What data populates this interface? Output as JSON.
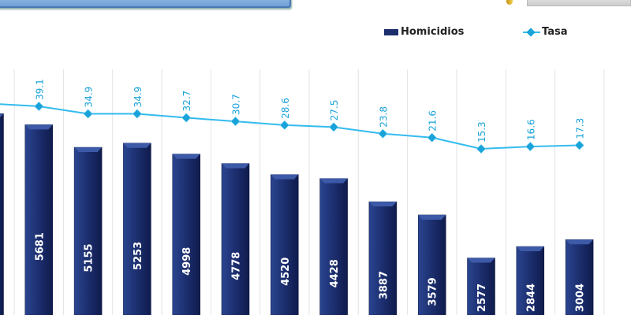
{
  "chart_data": {
    "type": "bar",
    "title": "",
    "categories": [
      "",
      "",
      "",
      "",
      "",
      "",
      "",
      "",
      "",
      "",
      "",
      "",
      ""
    ],
    "series": [
      {
        "name": "Homicidios",
        "type": "bar",
        "color": "#1c2e6e",
        "values": [
          5940,
          5681,
          5155,
          5253,
          4998,
          4778,
          4520,
          4428,
          3887,
          3579,
          2577,
          2844,
          3004
        ],
        "labels": [
          "",
          "5681",
          "5155",
          "5253",
          "4998",
          "4778",
          "4520",
          "4428",
          "3887",
          "3579",
          "2577",
          "2844",
          "3004"
        ]
      },
      {
        "name": "Tasa",
        "type": "line",
        "color": "#33bbee",
        "values": [
          40.6,
          39.1,
          34.9,
          34.9,
          32.7,
          30.7,
          28.6,
          27.5,
          23.8,
          21.6,
          15.3,
          16.6,
          17.3
        ],
        "labels": [
          "",
          "39.1",
          "34.9",
          "34.9",
          "32.7",
          "30.7",
          "28.6",
          "27.5",
          "23.8",
          "21.6",
          "15.3",
          "16.6",
          "17.3"
        ]
      }
    ],
    "legend": "top-right",
    "grid": "vertical"
  },
  "legend": {
    "bar_label": "Homicidios",
    "line_label": "Tasa"
  }
}
